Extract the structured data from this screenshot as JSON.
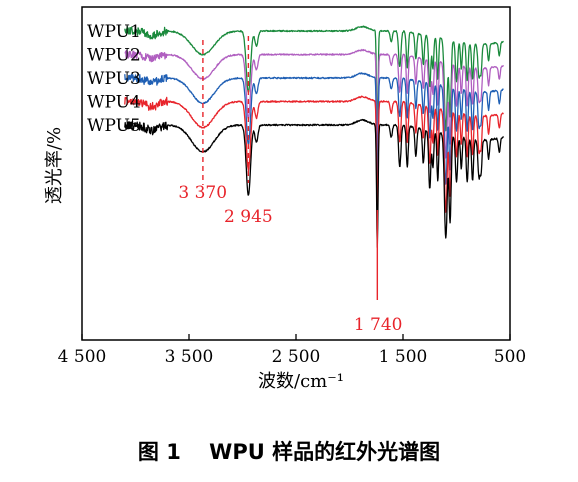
{
  "figure_caption": "图 1　 WPU 样品的红外光谱图",
  "chart_data": {
    "type": "line",
    "title": "",
    "xlabel": "波数/cm⁻¹",
    "ylabel": "透光率/%",
    "xlim": [
      4500,
      500
    ],
    "x_reversed": true,
    "x_ticks": [
      4500,
      3500,
      2500,
      1500,
      500
    ],
    "x_tick_labels": [
      "4 500",
      "3 500",
      "2 500",
      "1 500",
      "500"
    ],
    "y_ticks": [],
    "grid": false,
    "legend": "top-left",
    "series": [
      {
        "name": "WPU1",
        "color": "#1a8a3c",
        "offset": 0
      },
      {
        "name": "WPU2",
        "color": "#b05fc0",
        "offset": 1
      },
      {
        "name": "WPU3",
        "color": "#1f5fb4",
        "offset": 2
      },
      {
        "name": "WPU4",
        "color": "#e8242b",
        "offset": 3
      },
      {
        "name": "WPU5",
        "color": "#000000",
        "offset": 4
      }
    ],
    "annotations": [
      {
        "label": "3 370",
        "x": 3370,
        "color": "#e8242b"
      },
      {
        "label": "2 945",
        "x": 2945,
        "color": "#e8242b"
      },
      {
        "label": "1 740",
        "x": 1740,
        "color": "#e8242b"
      }
    ]
  }
}
